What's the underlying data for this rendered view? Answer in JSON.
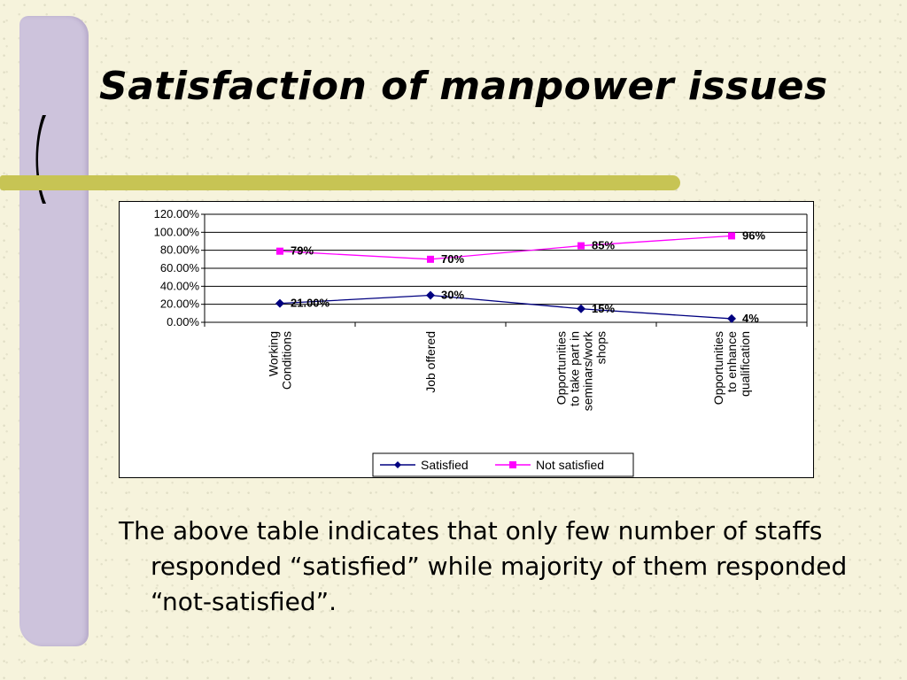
{
  "slide": {
    "title": "Satisfaction of manpower issues",
    "body_text": "The above table indicates that only few number of staffs responded “satisfied” while majority of them responded “not-satisfied”."
  },
  "colors": {
    "satisfied": "#000080",
    "not_satisfied": "#ff00ff",
    "side_band": "#cdc3dc",
    "rule": "#c7c454"
  },
  "chart_data": {
    "type": "line",
    "categories": [
      [
        "Working",
        "Conditions"
      ],
      [
        "Job offered"
      ],
      [
        "Opportunities",
        "to take part in",
        "seminars/work",
        "shops"
      ],
      [
        "Opportunities",
        "to enhance",
        "qualification"
      ]
    ],
    "y_tick_labels": [
      "0.00%",
      "20.00%",
      "40.00%",
      "60.00%",
      "80.00%",
      "100.00%",
      "120.00%"
    ],
    "ylim": [
      0,
      120
    ],
    "grid": true,
    "legend": "bottom",
    "series": [
      {
        "name": "Satisfied",
        "values": [
          21,
          30,
          15,
          4
        ],
        "labels": [
          "21.00%",
          "30%",
          "15%",
          "4%"
        ],
        "marker": "diamond",
        "color": "#000080"
      },
      {
        "name": "Not satisfied",
        "values": [
          79,
          70,
          85,
          96
        ],
        "labels": [
          "79%",
          "70%",
          "85%",
          "96%"
        ],
        "marker": "square",
        "color": "#ff00ff"
      }
    ]
  }
}
